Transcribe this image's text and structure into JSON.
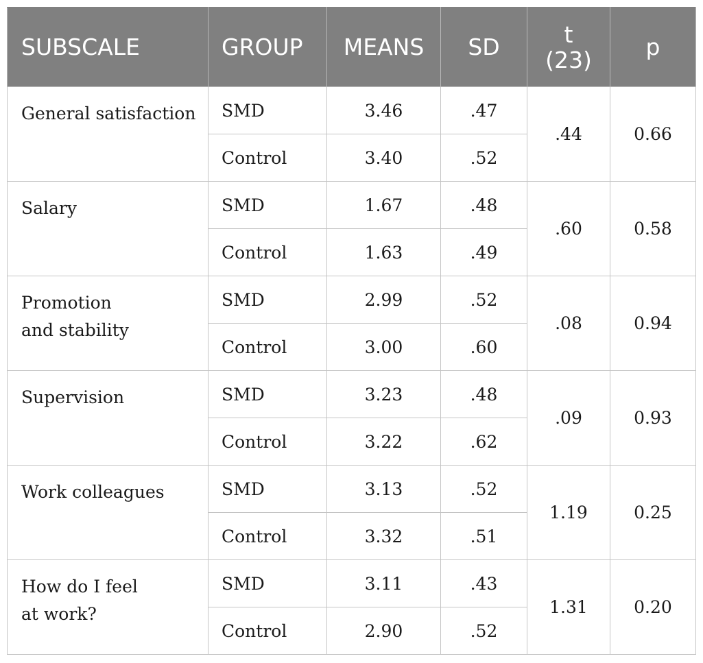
{
  "headers": {
    "subscale": "SUBSCALE",
    "group": "GROUP",
    "means": "MEANS",
    "sd": "SD",
    "t_line1": "t",
    "t_line2": "(23)",
    "p": "p"
  },
  "rows": [
    {
      "subscale_lines": [
        "General satisfaction"
      ],
      "t": ".44",
      "p": "0.66",
      "groups": [
        {
          "group": "SMD",
          "mean": "3.46",
          "sd": ".47"
        },
        {
          "group": "Control",
          "mean": "3.40",
          "sd": ".52"
        }
      ]
    },
    {
      "subscale_lines": [
        "Salary"
      ],
      "t": ".60",
      "p": "0.58",
      "groups": [
        {
          "group": "SMD",
          "mean": "1.67",
          "sd": ".48"
        },
        {
          "group": "Control",
          "mean": "1.63",
          "sd": ".49"
        }
      ]
    },
    {
      "subscale_lines": [
        "Promotion",
        "and stability"
      ],
      "t": ".08",
      "p": "0.94",
      "groups": [
        {
          "group": "SMD",
          "mean": "2.99",
          "sd": ".52"
        },
        {
          "group": "Control",
          "mean": "3.00",
          "sd": ".60"
        }
      ]
    },
    {
      "subscale_lines": [
        "Supervision"
      ],
      "t": ".09",
      "p": "0.93",
      "groups": [
        {
          "group": "SMD",
          "mean": "3.23",
          "sd": ".48"
        },
        {
          "group": "Control",
          "mean": "3.22",
          "sd": ".62"
        }
      ]
    },
    {
      "subscale_lines": [
        "Work colleagues"
      ],
      "t": "1.19",
      "p": "0.25",
      "groups": [
        {
          "group": "SMD",
          "mean": "3.13",
          "sd": ".52"
        },
        {
          "group": "Control",
          "mean": "3.32",
          "sd": ".51"
        }
      ]
    },
    {
      "subscale_lines": [
        "How do I feel",
        "at work?"
      ],
      "t": "1.31",
      "p": "0.20",
      "groups": [
        {
          "group": "SMD",
          "mean": "3.11",
          "sd": ".43"
        },
        {
          "group": "Control",
          "mean": "2.90",
          "sd": ".52"
        }
      ]
    }
  ]
}
